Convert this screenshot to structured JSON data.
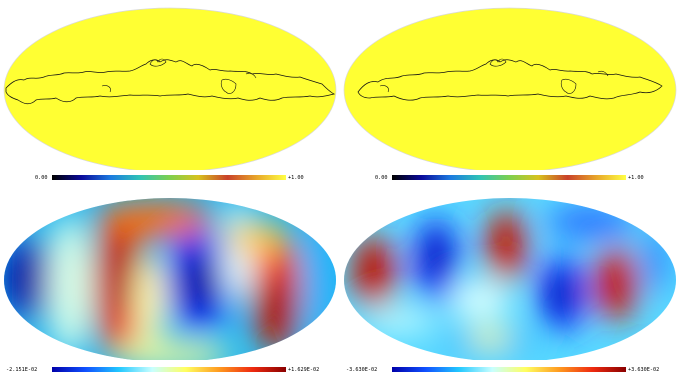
{
  "panels": [
    {
      "id": "top-left",
      "map_type": "mask",
      "fill_color": "#ffff33",
      "colorbar": {
        "min_label": "0.00",
        "max_label": "+1.00",
        "gradient": [
          "#000000",
          "#0a0a9a",
          "#1c7ae0",
          "#2fc3b6",
          "#7cd050",
          "#d7c21e",
          "#c9412a",
          "#e8a72a",
          "#ffff44"
        ]
      }
    },
    {
      "id": "top-right",
      "map_type": "mask",
      "fill_color": "#ffff33",
      "colorbar": {
        "min_label": "0.00",
        "max_label": "+1.00",
        "gradient": [
          "#000000",
          "#0a0a9a",
          "#1c7ae0",
          "#2fc3b6",
          "#7cd050",
          "#d7c21e",
          "#c9412a",
          "#e8a72a",
          "#ffff44"
        ]
      }
    },
    {
      "id": "bottom-left",
      "map_type": "field",
      "colorbar": {
        "min_label": "-2.151E-02",
        "max_label": "+1.629E-02",
        "gradient": [
          "#0000aa",
          "#1050ff",
          "#22c8ff",
          "#c8ffff",
          "#ffff60",
          "#ff9a20",
          "#ee2a10",
          "#8a0000"
        ]
      }
    },
    {
      "id": "bottom-right",
      "map_type": "field",
      "colorbar": {
        "min_label": "-3.630E-02",
        "max_label": "+3.630E-02",
        "gradient": [
          "#0000aa",
          "#1050ff",
          "#22c8ff",
          "#c8ffff",
          "#ffff60",
          "#ff9a20",
          "#ee2a10",
          "#8a0000"
        ]
      }
    }
  ]
}
